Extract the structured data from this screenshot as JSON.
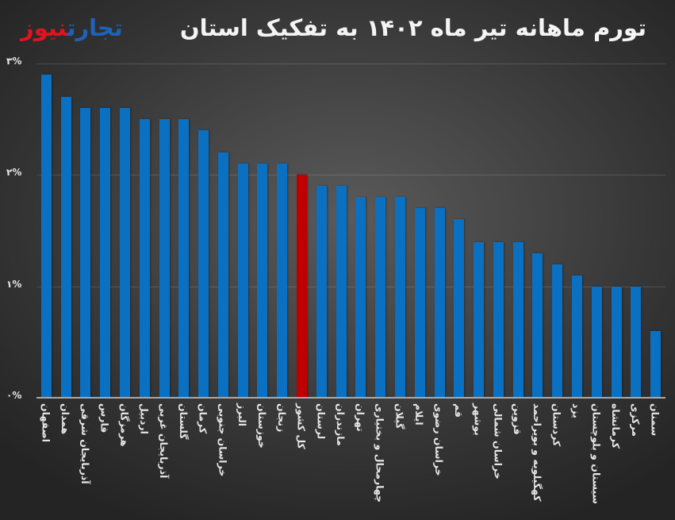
{
  "header": {
    "title": "تورم ماهانه تیر ماه ۱۴۰۲ به تفکیک استان",
    "logo_part1": "تجارت",
    "logo_part2": "نیوز"
  },
  "colors": {
    "bar": "#0a70c2",
    "highlight_bar": "#c00000",
    "logo_blue": "#1e63b8",
    "logo_red": "#e0141e"
  },
  "axis": {
    "yticks": [
      {
        "label": "۳%",
        "value": 3
      },
      {
        "label": "۲%",
        "value": 2
      },
      {
        "label": "۱%",
        "value": 1
      },
      {
        "label": "۰%",
        "value": 0
      }
    ]
  },
  "chart_data": {
    "type": "bar",
    "title": "تورم ماهانه تیر ماه ۱۴۰۲ به تفکیک استان",
    "xlabel": "",
    "ylabel": "",
    "ylim": [
      0,
      3
    ],
    "grid": true,
    "legend": null,
    "highlight_category": "کل کشور",
    "categories": [
      "اصفهان",
      "همدان",
      "آذربایجان شرقی",
      "فارس",
      "هرمزگان",
      "اردبیل",
      "آذربایجان غربی",
      "گلستان",
      "کرمان",
      "خراسان جنوبی",
      "البرز",
      "خوزستان",
      "زنجان",
      "کل کشور",
      "لرستان",
      "مازندران",
      "تهران",
      "چهارمحال و بختیاری",
      "گیلان",
      "ایلام",
      "خراسان رضوی",
      "قم",
      "بوشهر",
      "خراسان شمالی",
      "قزوین",
      "کهگیلویه و بویراحمد",
      "کردستان",
      "یزد",
      "سیستان و بلوچستان",
      "کرمانشاه",
      "مرکزی",
      "سمنان"
    ],
    "values": [
      2.9,
      2.7,
      2.6,
      2.6,
      2.6,
      2.5,
      2.5,
      2.5,
      2.4,
      2.2,
      2.1,
      2.1,
      2.1,
      2.0,
      1.9,
      1.9,
      1.8,
      1.8,
      1.8,
      1.7,
      1.7,
      1.6,
      1.4,
      1.4,
      1.4,
      1.3,
      1.2,
      1.1,
      1.0,
      1.0,
      1.0,
      0.6
    ],
    "unit": "%"
  }
}
